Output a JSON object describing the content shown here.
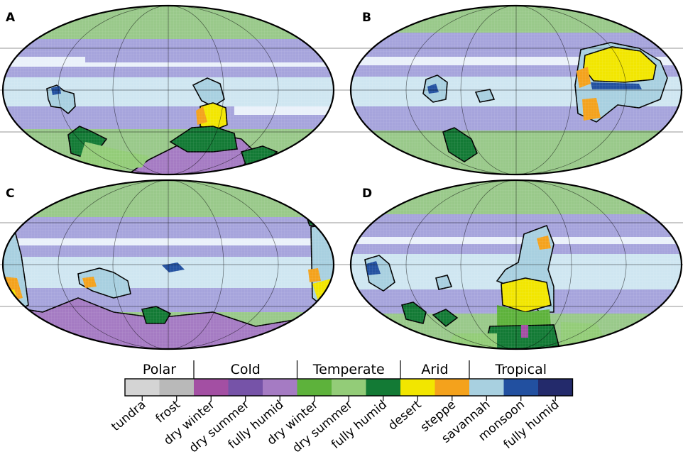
{
  "panels": [
    {
      "letter": "A"
    },
    {
      "letter": "B"
    },
    {
      "letter": "C"
    },
    {
      "letter": "D"
    }
  ],
  "legend": {
    "groups": [
      "Polar",
      "Cold",
      "Temperate",
      "Arid",
      "Tropical"
    ],
    "classes": [
      {
        "group": "Polar",
        "label": "tundra",
        "color": "#d4d4d4"
      },
      {
        "group": "Polar",
        "label": "frost",
        "color": "#b9b9b9"
      },
      {
        "group": "Cold",
        "label": "dry winter",
        "color": "#a34fa3"
      },
      {
        "group": "Cold",
        "label": "dry summer",
        "color": "#7653a8"
      },
      {
        "group": "Cold",
        "label": "fully humid",
        "color": "#a57bc3"
      },
      {
        "group": "Temperate",
        "label": "dry winter",
        "color": "#5db23b"
      },
      {
        "group": "Temperate",
        "label": "dry summer",
        "color": "#93cc78"
      },
      {
        "group": "Temperate",
        "label": "fully humid",
        "color": "#137a35"
      },
      {
        "group": "Arid",
        "label": "desert",
        "color": "#f2e600"
      },
      {
        "group": "Arid",
        "label": "steppe",
        "color": "#f4a21c"
      },
      {
        "group": "Tropical",
        "label": "savannah",
        "color": "#a8d0e0"
      },
      {
        "group": "Tropical",
        "label": "monsoon",
        "color": "#2250a0"
      },
      {
        "group": "Tropical",
        "label": "fully humid",
        "color": "#232a6b"
      }
    ]
  },
  "ocean_colors": {
    "pole": "#99c98a",
    "mid": "#a6a4dc",
    "gap": "#eaf1fa",
    "tropic": "#cfe6f1"
  }
}
